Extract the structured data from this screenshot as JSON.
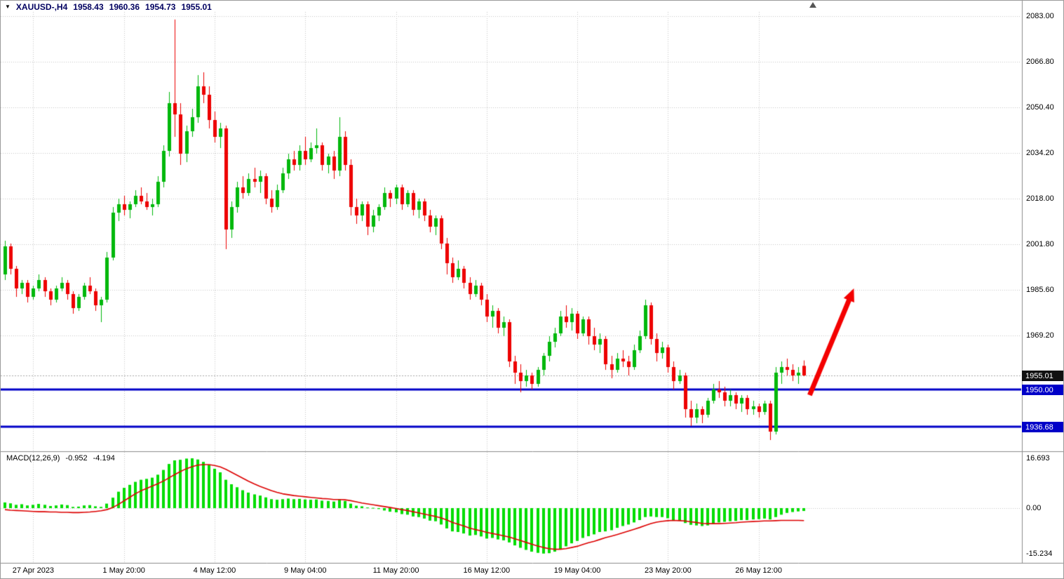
{
  "header": {
    "symbol_period": "XAUUSD-,H4",
    "open": "1958.43",
    "high": "1960.36",
    "low": "1954.73",
    "close": "1955.01"
  },
  "indicator_header": {
    "label": "MACD(12,26,9)",
    "value": "-0.952",
    "signal_value": "-4.194"
  },
  "colors": {
    "background": "#ffffff",
    "grid": "#c6c6c6",
    "candle_up": "#00b80b",
    "candle_down": "#ed0000",
    "macd_bar": "#00dd00",
    "macd_signal": "#dd0000",
    "support_line": "#0000c8",
    "bid_line": "#a8a8a8",
    "badge_current_bg": "#111111",
    "badge_level_bg": "#0000c8",
    "arrow": "#f40000",
    "separator": "#8c8c8c",
    "axis_text": "#000000",
    "header_text": "#000060"
  },
  "price_axis": {
    "ticks": [
      {
        "text": "2083.00",
        "price": 2083.0
      },
      {
        "text": "2066.80",
        "price": 2066.8
      },
      {
        "text": "2050.40",
        "price": 2050.4
      },
      {
        "text": "2034.20",
        "price": 2034.2
      },
      {
        "text": "2018.00",
        "price": 2018.0
      },
      {
        "text": "2001.80",
        "price": 2001.8
      },
      {
        "text": "1985.60",
        "price": 1985.6
      },
      {
        "text": "1969.20",
        "price": 1969.2
      }
    ],
    "badges": [
      {
        "text": "1955.01",
        "price": 1955.01,
        "bg": "#111111"
      },
      {
        "text": "1950.00",
        "price": 1950.0,
        "bg": "#0000c8"
      },
      {
        "text": "1936.68",
        "price": 1936.68,
        "bg": "#0000c8"
      }
    ]
  },
  "macd_axis": {
    "ticks": [
      {
        "text": "16.693",
        "value": 16.693
      },
      {
        "text": "0.00",
        "value": 0
      },
      {
        "text": "-15.234",
        "value": -15.234
      }
    ]
  },
  "chart_data": {
    "type": "candlestick",
    "symbol": "XAUUSD-",
    "timeframe": "H4",
    "current_ohlc": [
      1958.43,
      1960.36,
      1954.73,
      1955.01
    ],
    "price_axis_range": [
      1928,
      2087
    ],
    "grid": "dotted",
    "x_labels": [
      {
        "text": "27 Apr 2023",
        "index": 5
      },
      {
        "text": "1 May 20:00",
        "index": 21
      },
      {
        "text": "4 May 12:00",
        "index": 37
      },
      {
        "text": "9 May 04:00",
        "index": 53
      },
      {
        "text": "11 May 20:00",
        "index": 69
      },
      {
        "text": "16 May 12:00",
        "index": 85
      },
      {
        "text": "19 May 04:00",
        "index": 101
      },
      {
        "text": "23 May 20:00",
        "index": 117
      },
      {
        "text": "26 May 12:00",
        "index": 133
      }
    ],
    "price_lines": [
      {
        "price": 1955.01,
        "style": "bid"
      },
      {
        "price": 1950.0,
        "style": "support"
      },
      {
        "price": 1936.68,
        "style": "support"
      }
    ],
    "annotation_arrow": {
      "from": {
        "index": 142.0,
        "price": 1948.0
      },
      "to": {
        "index": 149.8,
        "price": 1986.0
      }
    },
    "candles": [
      [
        1991,
        2003,
        1989,
        2001
      ],
      [
        2001,
        2002,
        1991,
        1993
      ],
      [
        1993,
        1994,
        1983,
        1986
      ],
      [
        1986,
        1989,
        1984,
        1988
      ],
      [
        1988,
        1989,
        1981,
        1983
      ],
      [
        1983,
        1987,
        1982,
        1986
      ],
      [
        1986,
        1991,
        1985,
        1989
      ],
      [
        1989,
        1990,
        1983,
        1985
      ],
      [
        1985,
        1986,
        1980,
        1982
      ],
      [
        1982,
        1987,
        1981,
        1986
      ],
      [
        1986,
        1990,
        1985,
        1988
      ],
      [
        1988,
        1989,
        1982,
        1984
      ],
      [
        1984,
        1985,
        1977,
        1979
      ],
      [
        1979,
        1984,
        1978,
        1983
      ],
      [
        1983,
        1988,
        1982,
        1987
      ],
      [
        1987,
        1990,
        1984,
        1985
      ],
      [
        1985,
        1986,
        1978,
        1980
      ],
      [
        1980,
        1983,
        1974,
        1982
      ],
      [
        1982,
        1999,
        1981,
        1997
      ],
      [
        1997,
        2015,
        1996,
        2013
      ],
      [
        2013,
        2018,
        2010,
        2016
      ],
      [
        2016,
        2019,
        2012,
        2014
      ],
      [
        2014,
        2017,
        2011,
        2016
      ],
      [
        2016,
        2021,
        2015,
        2019
      ],
      [
        2019,
        2022,
        2016,
        2017
      ],
      [
        2017,
        2020,
        2014,
        2015
      ],
      [
        2015,
        2018,
        2012,
        2016
      ],
      [
        2016,
        2026,
        2015,
        2024
      ],
      [
        2024,
        2037,
        2022,
        2035
      ],
      [
        2035,
        2056,
        2033,
        2052
      ],
      [
        2052,
        2081.8,
        2040,
        2048
      ],
      [
        2048,
        2052,
        2030,
        2034
      ],
      [
        2034,
        2044,
        2031,
        2042
      ],
      [
        2042,
        2050,
        2040,
        2047
      ],
      [
        2047,
        2062,
        2045,
        2058
      ],
      [
        2058,
        2063,
        2052,
        2055
      ],
      [
        2055,
        2058,
        2043,
        2046
      ],
      [
        2046,
        2049,
        2038,
        2040
      ],
      [
        2040,
        2045,
        2036,
        2043
      ],
      [
        2043,
        2044,
        2000,
        2007
      ],
      [
        2007,
        2017,
        2004,
        2015
      ],
      [
        2015,
        2024,
        2013,
        2022
      ],
      [
        2022,
        2026,
        2018,
        2020
      ],
      [
        2020,
        2027,
        2019,
        2025
      ],
      [
        2025,
        2029,
        2022,
        2024
      ],
      [
        2024,
        2028,
        2020,
        2026
      ],
      [
        2026,
        2027,
        2016,
        2018
      ],
      [
        2018,
        2021,
        2013,
        2015
      ],
      [
        2015,
        2023,
        2014,
        2021
      ],
      [
        2021,
        2029,
        2020,
        2027
      ],
      [
        2027,
        2034,
        2025,
        2032
      ],
      [
        2032,
        2035,
        2028,
        2030
      ],
      [
        2030,
        2037,
        2028,
        2035
      ],
      [
        2035,
        2040,
        2030,
        2032
      ],
      [
        2032,
        2038,
        2031,
        2036
      ],
      [
        2036,
        2043,
        2034,
        2037
      ],
      [
        2037,
        2038,
        2028,
        2030
      ],
      [
        2030,
        2034,
        2027,
        2033
      ],
      [
        2033,
        2035,
        2025,
        2028
      ],
      [
        2028,
        2047,
        2026,
        2040
      ],
      [
        2040,
        2042,
        2028,
        2030
      ],
      [
        2030,
        2032,
        2012,
        2015
      ],
      [
        2015,
        2018,
        2009,
        2012
      ],
      [
        2012,
        2017,
        2010,
        2016
      ],
      [
        2016,
        2017,
        2005,
        2008
      ],
      [
        2008,
        2014,
        2006,
        2012
      ],
      [
        2012,
        2016,
        2010,
        2015
      ],
      [
        2015,
        2022,
        2014,
        2020
      ],
      [
        2020,
        2021,
        2015,
        2018
      ],
      [
        2018,
        2023,
        2016,
        2022
      ],
      [
        2022,
        2023,
        2014,
        2016
      ],
      [
        2016,
        2021,
        2015,
        2020
      ],
      [
        2020,
        2021,
        2012,
        2014
      ],
      [
        2014,
        2018,
        2011,
        2017
      ],
      [
        2017,
        2018,
        2010,
        2012
      ],
      [
        2012,
        2014,
        2006,
        2008
      ],
      [
        2008,
        2012,
        2005,
        2011
      ],
      [
        2011,
        2012,
        2000,
        2002
      ],
      [
        2002,
        2004,
        1991,
        1995
      ],
      [
        1995,
        1997,
        1988,
        1990
      ],
      [
        1990,
        1996,
        1989,
        1993
      ],
      [
        1993,
        1994,
        1986,
        1988
      ],
      [
        1988,
        1990,
        1982,
        1984
      ],
      [
        1984,
        1989,
        1983,
        1987
      ],
      [
        1987,
        1988,
        1980,
        1982
      ],
      [
        1982,
        1984,
        1974,
        1976
      ],
      [
        1976,
        1980,
        1972,
        1978
      ],
      [
        1978,
        1979,
        1970,
        1972
      ],
      [
        1972,
        1976,
        1969,
        1974
      ],
      [
        1974,
        1975,
        1958,
        1960
      ],
      [
        1960,
        1962,
        1952,
        1956
      ],
      [
        1956,
        1959,
        1949,
        1953
      ],
      [
        1953,
        1957,
        1951,
        1955
      ],
      [
        1955,
        1956,
        1950,
        1952
      ],
      [
        1952,
        1958,
        1951,
        1957
      ],
      [
        1957,
        1963,
        1955,
        1962
      ],
      [
        1962,
        1969,
        1960,
        1967
      ],
      [
        1967,
        1972,
        1965,
        1970
      ],
      [
        1970,
        1978,
        1969,
        1976
      ],
      [
        1976,
        1980,
        1972,
        1974
      ],
      [
        1974,
        1979,
        1971,
        1977
      ],
      [
        1977,
        1978,
        1968,
        1970
      ],
      [
        1970,
        1976,
        1969,
        1975
      ],
      [
        1975,
        1976,
        1966,
        1969
      ],
      [
        1969,
        1972,
        1964,
        1966
      ],
      [
        1966,
        1970,
        1963,
        1968
      ],
      [
        1968,
        1969,
        1957,
        1959
      ],
      [
        1959,
        1962,
        1954,
        1957
      ],
      [
        1957,
        1963,
        1956,
        1961
      ],
      [
        1961,
        1964,
        1958,
        1960
      ],
      [
        1960,
        1962,
        1955,
        1958
      ],
      [
        1958,
        1966,
        1957,
        1964
      ],
      [
        1964,
        1971,
        1963,
        1969
      ],
      [
        1969,
        1982,
        1968,
        1980
      ],
      [
        1980,
        1981,
        1966,
        1968
      ],
      [
        1968,
        1970,
        1960,
        1963
      ],
      [
        1963,
        1967,
        1961,
        1965
      ],
      [
        1965,
        1966,
        1956,
        1958
      ],
      [
        1958,
        1960,
        1950,
        1953
      ],
      [
        1953,
        1957,
        1952,
        1955
      ],
      [
        1955,
        1956,
        1940,
        1943
      ],
      [
        1943,
        1946,
        1937,
        1940
      ],
      [
        1940,
        1945,
        1938,
        1943
      ],
      [
        1943,
        1944,
        1938,
        1941
      ],
      [
        1941,
        1947,
        1940,
        1946
      ],
      [
        1946,
        1952,
        1945,
        1950
      ],
      [
        1950,
        1953,
        1947,
        1949
      ],
      [
        1949,
        1951,
        1944,
        1946
      ],
      [
        1946,
        1950,
        1944,
        1948
      ],
      [
        1948,
        1949,
        1943,
        1945
      ],
      [
        1945,
        1948,
        1942,
        1947
      ],
      [
        1947,
        1948,
        1941,
        1943
      ],
      [
        1943,
        1946,
        1941,
        1944
      ],
      [
        1944,
        1945,
        1940,
        1942
      ],
      [
        1942,
        1946,
        1941,
        1945
      ],
      [
        1945,
        1946,
        1932,
        1935
      ],
      [
        1935,
        1958,
        1934,
        1956
      ],
      [
        1956,
        1960,
        1952,
        1958
      ],
      [
        1958,
        1961,
        1955,
        1957
      ],
      [
        1957,
        1959,
        1953,
        1955
      ],
      [
        1955,
        1958,
        1952,
        1956
      ],
      [
        1958.43,
        1960.36,
        1954.73,
        1955.01
      ]
    ],
    "macd": {
      "params": "12,26,9",
      "last_hist": -0.952,
      "last_signal": -4.194,
      "axis_range": [
        -18.6,
        19.1
      ],
      "hist": [
        1.9,
        1.6,
        1.1,
        1.3,
        0.9,
        1.1,
        1.4,
        1.1,
        0.7,
        0.9,
        1.2,
        1.0,
        0.4,
        0.5,
        0.9,
        1.0,
        0.6,
        0.4,
        1.5,
        3.5,
        5.5,
        6.8,
        7.8,
        8.8,
        9.5,
        9.8,
        10.2,
        11.2,
        12.8,
        14.8,
        16.0,
        16.2,
        16.6,
        16.693,
        16.3,
        15.5,
        14.5,
        13.2,
        12.0,
        9.5,
        8.0,
        7.0,
        6.0,
        5.2,
        4.6,
        4.2,
        3.6,
        3.0,
        2.8,
        3.0,
        3.2,
        3.0,
        3.1,
        2.9,
        2.8,
        2.9,
        2.5,
        2.4,
        2.2,
        2.8,
        2.4,
        1.5,
        0.8,
        0.6,
        0.2,
        0.1,
        -0.3,
        -0.8,
        -1.2,
        -1.4,
        -2.0,
        -2.2,
        -2.8,
        -3.0,
        -3.5,
        -4.2,
        -4.4,
        -5.5,
        -6.8,
        -7.8,
        -8.0,
        -8.5,
        -9.2,
        -9.0,
        -9.5,
        -10.2,
        -10.0,
        -10.5,
        -10.8,
        -11.5,
        -12.5,
        -13.3,
        -14.0,
        -14.6,
        -15.0,
        -15.234,
        -15.1,
        -14.6,
        -13.8,
        -12.8,
        -11.8,
        -11.0,
        -10.0,
        -9.4,
        -8.8,
        -8.0,
        -7.8,
        -7.4,
        -6.6,
        -6.0,
        -5.5,
        -4.8,
        -4.0,
        -3.0,
        -2.8,
        -3.0,
        -3.0,
        -3.4,
        -4.0,
        -4.2,
        -5.0,
        -5.6,
        -5.8,
        -6.0,
        -5.8,
        -5.2,
        -4.8,
        -4.6,
        -4.4,
        -4.3,
        -4.0,
        -4.0,
        -3.8,
        -3.7,
        -3.5,
        -3.8,
        -3.0,
        -2.2,
        -1.6,
        -1.3,
        -1.1,
        -0.952
      ],
      "signal": [
        -0.5,
        -0.7,
        -0.8,
        -0.9,
        -1.0,
        -1.1,
        -1.2,
        -1.2,
        -1.3,
        -1.3,
        -1.4,
        -1.4,
        -1.5,
        -1.5,
        -1.4,
        -1.3,
        -1.1,
        -0.9,
        -0.5,
        0.2,
        1.2,
        2.4,
        3.6,
        4.8,
        5.8,
        6.6,
        7.4,
        8.2,
        9.1,
        10.2,
        11.3,
        12.3,
        13.2,
        13.9,
        14.4,
        14.6,
        14.6,
        14.3,
        13.8,
        13.0,
        12.0,
        11.0,
        10.0,
        9.0,
        8.1,
        7.3,
        6.6,
        5.9,
        5.3,
        4.8,
        4.5,
        4.2,
        4.0,
        3.8,
        3.6,
        3.4,
        3.2,
        3.1,
        2.9,
        2.9,
        2.8,
        2.5,
        2.1,
        1.7,
        1.4,
        1.1,
        0.8,
        0.5,
        0.2,
        -0.1,
        -0.5,
        -0.8,
        -1.2,
        -1.6,
        -2.0,
        -2.4,
        -2.8,
        -3.3,
        -4.0,
        -4.8,
        -5.4,
        -6.0,
        -6.7,
        -7.2,
        -7.6,
        -8.1,
        -8.5,
        -8.9,
        -9.3,
        -9.7,
        -10.3,
        -10.9,
        -11.5,
        -12.1,
        -12.7,
        -13.2,
        -13.6,
        -13.8,
        -13.8,
        -13.6,
        -13.2,
        -12.8,
        -12.2,
        -11.6,
        -11.1,
        -10.5,
        -9.9,
        -9.4,
        -8.9,
        -8.3,
        -7.7,
        -7.1,
        -6.5,
        -5.8,
        -5.2,
        -4.7,
        -4.4,
        -4.2,
        -4.1,
        -4.2,
        -4.3,
        -4.6,
        -4.8,
        -5.1,
        -5.2,
        -5.2,
        -5.2,
        -5.1,
        -5.0,
        -4.9,
        -4.7,
        -4.6,
        -4.5,
        -4.4,
        -4.3,
        -4.3,
        -4.2,
        -4.1,
        -4.1,
        -4.1,
        -4.1,
        -4.194
      ]
    }
  }
}
